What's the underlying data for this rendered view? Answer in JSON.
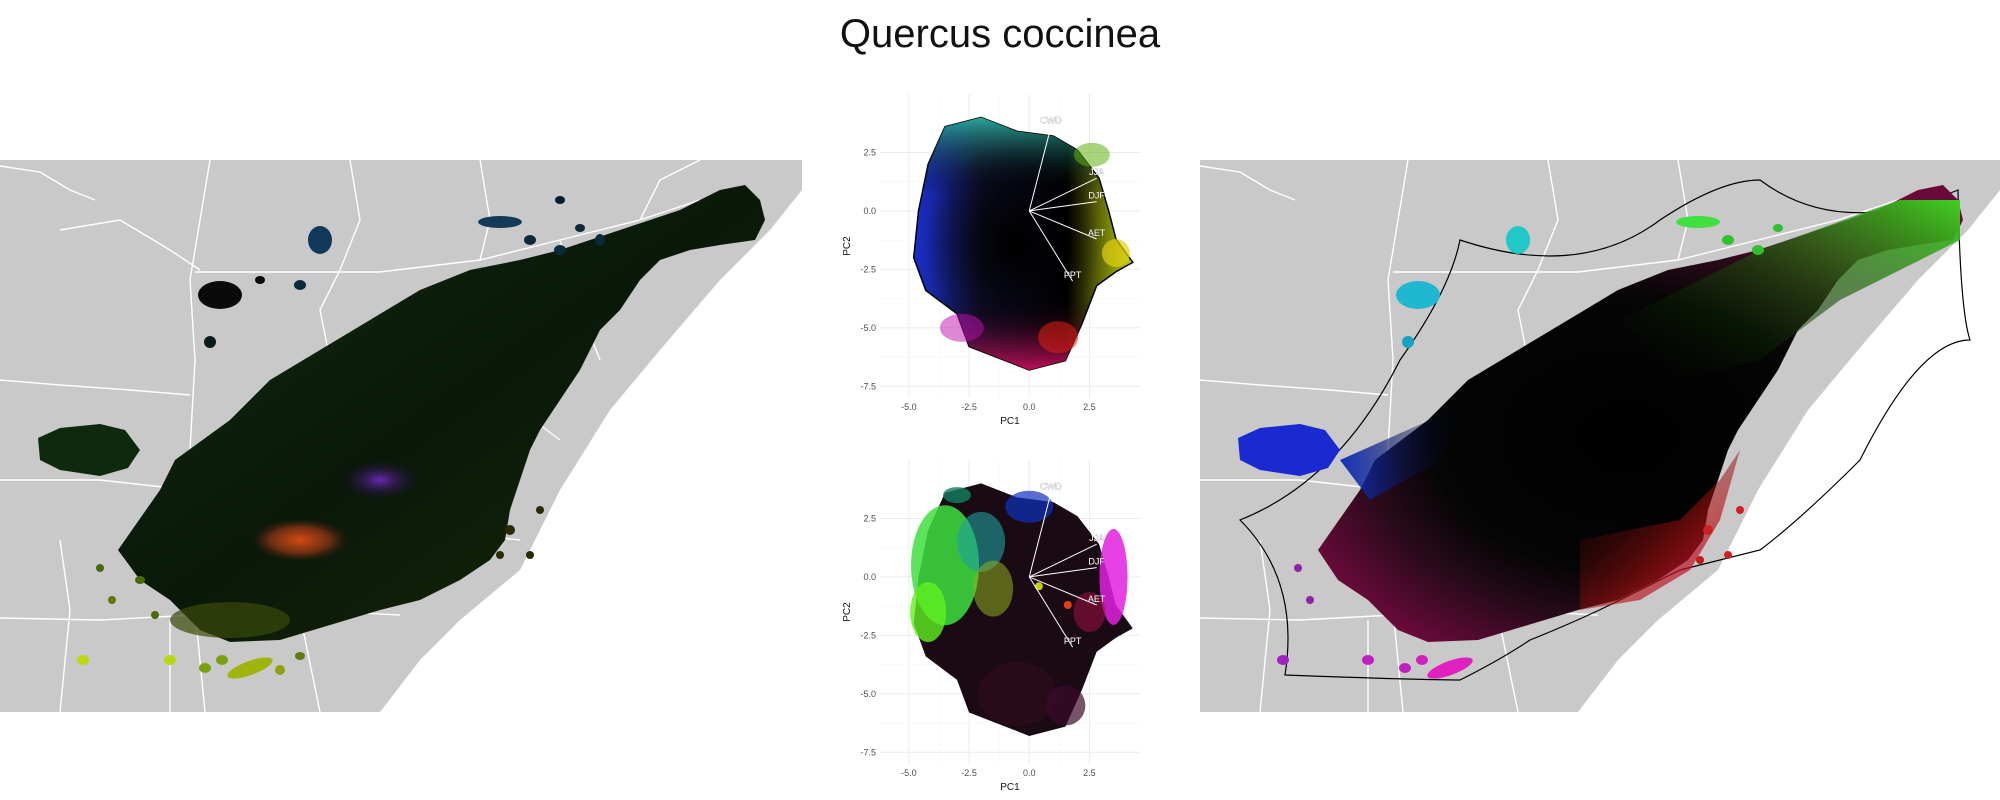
{
  "title": "Quercus coccinea",
  "colors": {
    "map_background": "#c9c9c9",
    "state_lines": "#ffffff",
    "range_dark": "#0a1408",
    "grid": "#ebebeb",
    "loading_lines": "#ffffff",
    "hull_outline": "#000000"
  },
  "chart_data": [
    {
      "panel": "pca-top",
      "type": "scatter",
      "title": "",
      "xlabel": "PC1",
      "ylabel": "PC2",
      "xlim": [
        -6.2,
        4.6
      ],
      "ylim": [
        -8.0,
        5.0
      ],
      "xticks": [
        -5.0,
        -2.5,
        0.0,
        2.5
      ],
      "xtick_labels": [
        "-5.0",
        "-2.5",
        "0.0",
        "2.5"
      ],
      "yticks": [
        2.5,
        0.0,
        -2.5,
        -5.0,
        -7.5
      ],
      "ytick_labels": [
        "2.5",
        "0.0",
        "-2.5",
        "-5.0",
        "-7.5"
      ],
      "grid": true,
      "coloring": "colour wheel over PC space",
      "loadings": [
        {
          "label": "CWD",
          "x": 0.9,
          "y": 3.6
        },
        {
          "label": "JJA",
          "x": 2.8,
          "y": 1.4
        },
        {
          "label": "DJF",
          "x": 2.8,
          "y": 0.4
        },
        {
          "label": "AET",
          "x": 2.8,
          "y": -1.2
        },
        {
          "label": "PPT",
          "x": 1.8,
          "y": -3.0
        }
      ]
    },
    {
      "panel": "pca-bottom",
      "type": "scatter",
      "title": "",
      "xlabel": "PC1",
      "ylabel": "PC2",
      "xlim": [
        -6.2,
        4.6
      ],
      "ylim": [
        -8.0,
        5.0
      ],
      "xticks": [
        -5.0,
        -2.5,
        0.0,
        2.5
      ],
      "xtick_labels": [
        "-5.0",
        "-2.5",
        "0.0",
        "2.5"
      ],
      "yticks": [
        2.5,
        0.0,
        -2.5,
        -5.0,
        -7.5
      ],
      "ytick_labels": [
        "2.5",
        "0.0",
        "-2.5",
        "-5.0",
        "-7.5"
      ],
      "grid": true,
      "coloring": "colour by geographic position",
      "loadings": [
        {
          "label": "CWD",
          "x": 0.9,
          "y": 3.6
        },
        {
          "label": "JJA",
          "x": 2.8,
          "y": 1.4
        },
        {
          "label": "DJF",
          "x": 2.8,
          "y": 0.4
        },
        {
          "label": "AET",
          "x": 2.8,
          "y": -1.2
        },
        {
          "label": "PPT",
          "x": 1.8,
          "y": -3.0
        }
      ]
    }
  ]
}
